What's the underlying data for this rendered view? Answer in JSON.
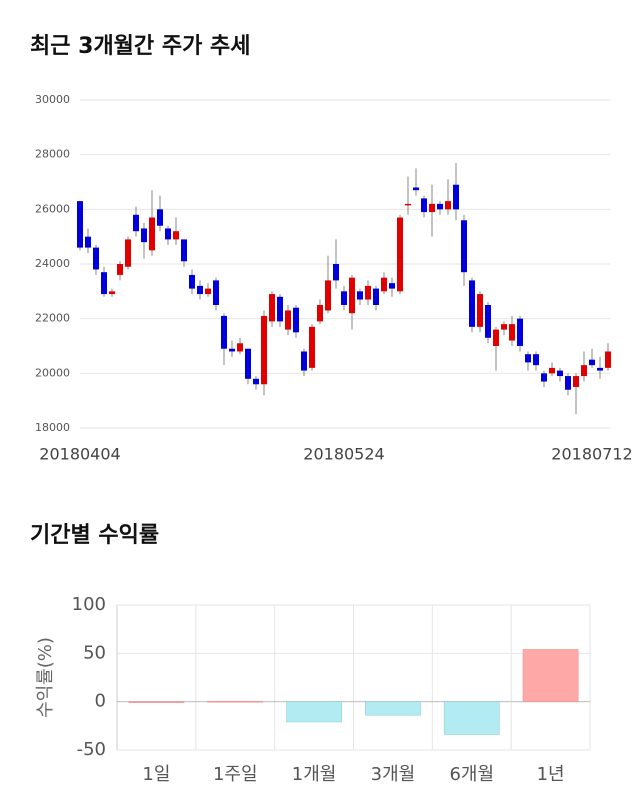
{
  "chart_data": [
    {
      "type": "candlestick",
      "title": "최근 3개월간 주가 추세",
      "categories": [
        "20180404",
        null,
        null,
        null,
        null,
        null,
        null,
        null,
        null,
        null,
        null,
        null,
        null,
        null,
        null,
        null,
        null,
        null,
        null,
        null,
        null,
        null,
        null,
        null,
        null,
        null,
        null,
        null,
        null,
        null,
        null,
        null,
        null,
        "20180524",
        null,
        null,
        null,
        null,
        null,
        null,
        null,
        null,
        null,
        null,
        null,
        null,
        null,
        null,
        null,
        null,
        null,
        null,
        null,
        null,
        null,
        null,
        null,
        null,
        null,
        null,
        null,
        null,
        null,
        null,
        "20180712",
        null,
        null
      ],
      "open": [
        26300,
        25000,
        24600,
        23700,
        22900,
        23600,
        23900,
        25800,
        25300,
        24500,
        26000,
        25300,
        24900,
        24900,
        23600,
        23200,
        22900,
        23400,
        22100,
        20900,
        20800,
        20900,
        19800,
        19600,
        21900,
        22800,
        21600,
        22400,
        20800,
        20200,
        21900,
        22300,
        24000,
        23000,
        22200,
        23000,
        22700,
        23100,
        23000,
        23300,
        23000,
        26200,
        26800,
        26400,
        25900,
        26200,
        26000,
        26900,
        25600,
        23400,
        21700,
        22500,
        21000,
        21600,
        21200,
        22000,
        20700,
        20700,
        20000,
        20000,
        20100,
        19900,
        19500,
        19900,
        20500,
        20200,
        20200
      ],
      "high": [
        26300,
        25300,
        24700,
        23900,
        23100,
        24100,
        25000,
        26100,
        25500,
        26700,
        26500,
        25400,
        25700,
        24900,
        23800,
        23400,
        23300,
        23500,
        22200,
        21200,
        21300,
        20900,
        19900,
        22300,
        23000,
        22900,
        22500,
        22500,
        20900,
        21800,
        22700,
        24300,
        24900,
        23200,
        23600,
        23100,
        23400,
        23200,
        23700,
        23500,
        25800,
        27200,
        27500,
        26500,
        26900,
        26300,
        27100,
        27700,
        25800,
        23500,
        23000,
        22600,
        21700,
        21900,
        22100,
        22100,
        20800,
        20800,
        20100,
        20400,
        20200,
        20000,
        20000,
        20800,
        20900,
        20600,
        21100
      ],
      "low": [
        24500,
        24400,
        23600,
        22800,
        22800,
        23400,
        23800,
        25000,
        24200,
        24300,
        25200,
        24700,
        24700,
        23900,
        22900,
        22700,
        22800,
        22300,
        20300,
        20600,
        20700,
        19600,
        19400,
        19200,
        21700,
        21700,
        21400,
        21300,
        19900,
        20100,
        21800,
        22200,
        23100,
        22300,
        21600,
        22500,
        22500,
        22300,
        22900,
        22800,
        22900,
        25800,
        26500,
        25700,
        25000,
        25800,
        25800,
        25600,
        23200,
        21500,
        21500,
        21100,
        20100,
        21400,
        21000,
        20800,
        20100,
        20100,
        19500,
        19900,
        19700,
        19200,
        18500,
        19700,
        20200,
        19800,
        20100
      ],
      "close": [
        24600,
        24600,
        23800,
        22900,
        23000,
        24000,
        24900,
        25200,
        24800,
        25700,
        25400,
        24900,
        25200,
        24100,
        23100,
        22900,
        23100,
        22500,
        20900,
        20800,
        21100,
        19800,
        19600,
        22100,
        22900,
        21900,
        22300,
        21500,
        20100,
        21700,
        22500,
        23400,
        23400,
        22500,
        23500,
        22700,
        23200,
        22500,
        23500,
        23100,
        25700,
        26200,
        26700,
        25900,
        26200,
        26000,
        26300,
        26000,
        23700,
        21700,
        22900,
        21300,
        21600,
        21800,
        21800,
        21000,
        20400,
        20300,
        19700,
        20200,
        19900,
        19400,
        19900,
        20300,
        20300,
        20100,
        20800
      ],
      "up_color": "#e00000",
      "down_color": "#0000dd",
      "ylim": [
        18000,
        30000
      ],
      "yticks": [
        18000,
        20000,
        22000,
        24000,
        26000,
        28000,
        30000
      ],
      "grid": true
    },
    {
      "type": "bar",
      "title": "기간별 수익률",
      "ylabel": "수익률(%)",
      "categories": [
        "1일",
        "1주일",
        "1개월",
        "3개월",
        "6개월",
        "1년"
      ],
      "values": [
        0,
        0.5,
        -21,
        -14,
        -34,
        54
      ],
      "positive_color": "#ffa8a8",
      "negative_color": "#b2ebf2",
      "ylim": [
        -50,
        100
      ],
      "yticks": [
        -50,
        0,
        50,
        100
      ],
      "grid": true
    }
  ]
}
